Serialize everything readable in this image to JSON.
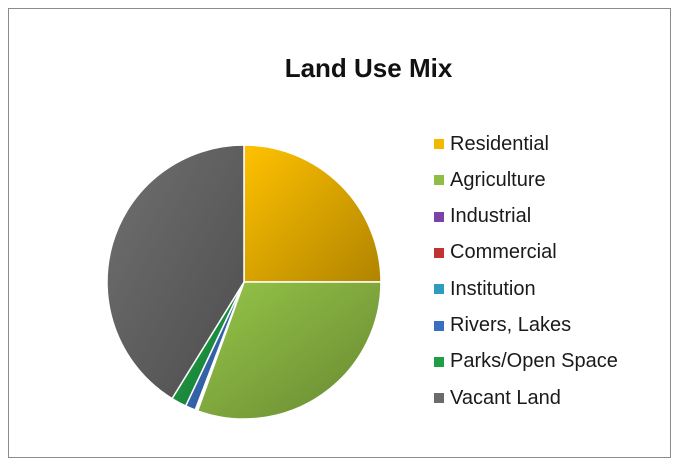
{
  "chart_data": {
    "type": "pie",
    "title": "Land Use Mix",
    "legend_position": "right",
    "categories": [
      "Residential",
      "Agriculture",
      "Industrial",
      "Commercial",
      "Institution",
      "Rivers, Lakes",
      "Parks/Open Space",
      "Vacant Land"
    ],
    "values": [
      25.0,
      30.5,
      0.1,
      0.1,
      0.1,
      1.2,
      1.8,
      41.2
    ],
    "unit": "%",
    "colors": [
      "#f5b800",
      "#8fbd45",
      "#7b43a6",
      "#c0332f",
      "#2f9bbf",
      "#3a6fbf",
      "#1f9e45",
      "#6b6b6b"
    ]
  }
}
